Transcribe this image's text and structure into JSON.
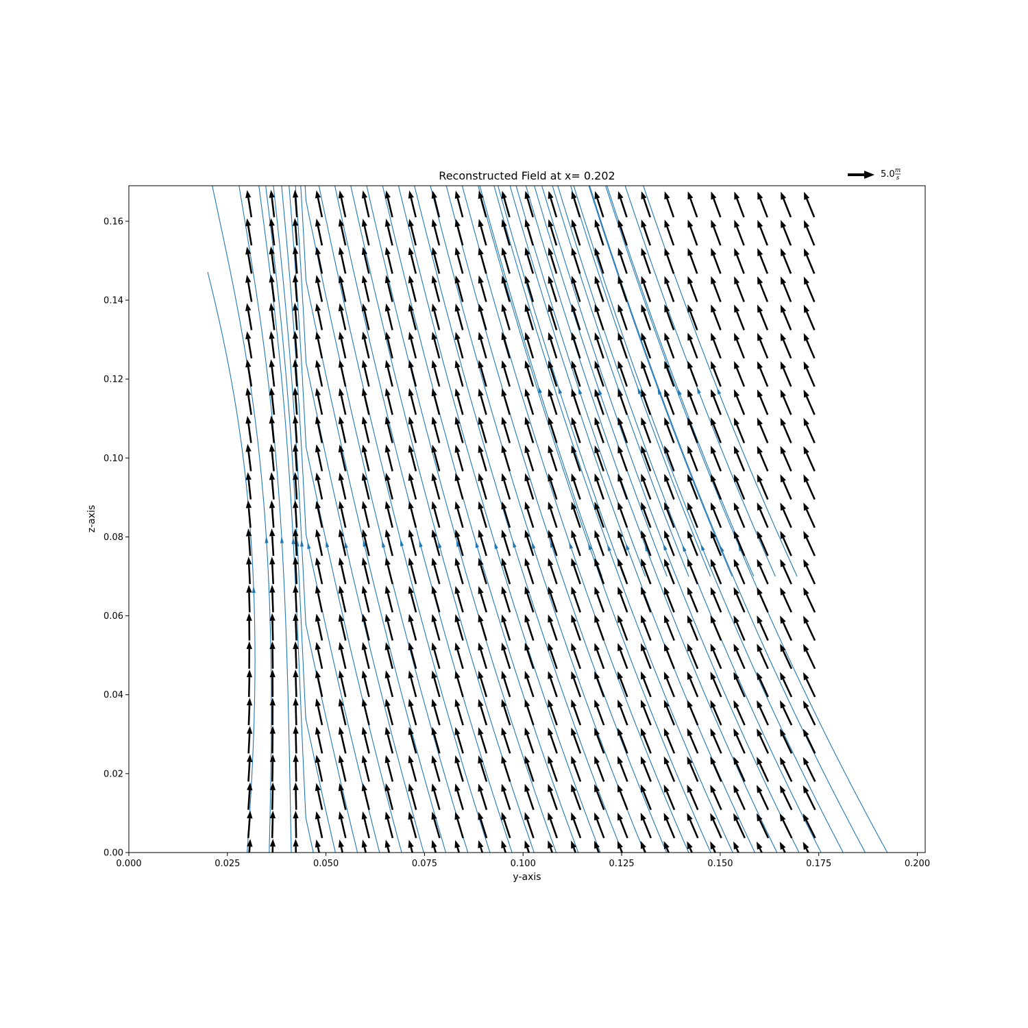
{
  "chart_data": {
    "type": "quiver",
    "title": "Reconstructed Field at x= 0.202",
    "xlabel": "y-axis",
    "ylabel": "z-axis",
    "xlim": [
      0.0,
      0.202
    ],
    "ylim": [
      0.0,
      0.169
    ],
    "xticks": [
      "0.000",
      "0.025",
      "0.050",
      "0.075",
      "0.100",
      "0.125",
      "0.150",
      "0.175",
      "0.200"
    ],
    "yticks": [
      "0.00",
      "0.02",
      "0.04",
      "0.06",
      "0.08",
      "0.10",
      "0.12",
      "0.14",
      "0.16"
    ],
    "grid": false,
    "quiver_key": {
      "value": "5.0",
      "unit_numerator": "m",
      "unit_denominator": "s",
      "placement": "above top-right"
    },
    "vector_grid": {
      "y_range": [
        0.0295,
        0.1715
      ],
      "y_count": 25,
      "z_range": [
        0.0,
        0.1645
      ],
      "z_count": 24
    },
    "field_description": "Vectors point mostly upward with a leftward lean; near y=0.03 the field is nearly vertical, tilting more toward the left for larger y and lower z.",
    "streamlines_color": "#1f77b4",
    "arrow_color": "#000000"
  }
}
